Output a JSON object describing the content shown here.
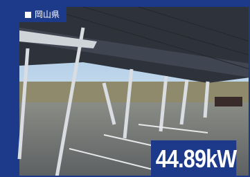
{
  "location": "岡山県",
  "capacity": "44.89kW"
}
